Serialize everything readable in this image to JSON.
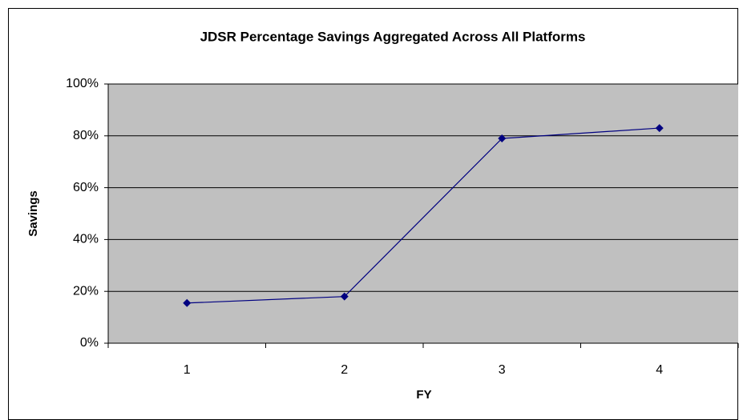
{
  "chart_data": {
    "type": "line",
    "title": "JDSR Percentage Savings Aggregated Across All Platforms",
    "x_label": "FY",
    "y_label": "Savings",
    "categories": [
      "1",
      "2",
      "3",
      "4"
    ],
    "series": [
      {
        "name": "Savings",
        "color": "#000080",
        "values": [
          15.5,
          18,
          79,
          83
        ]
      }
    ],
    "ylim": [
      0,
      100
    ],
    "yticks": [
      {
        "value": 0,
        "label": "0%"
      },
      {
        "value": 20,
        "label": "20%"
      },
      {
        "value": 40,
        "label": "40%"
      },
      {
        "value": 60,
        "label": "60%"
      },
      {
        "value": 80,
        "label": "80%"
      },
      {
        "value": 100,
        "label": "100%"
      }
    ],
    "grid": true,
    "plot_background": "#c0c0c0"
  }
}
